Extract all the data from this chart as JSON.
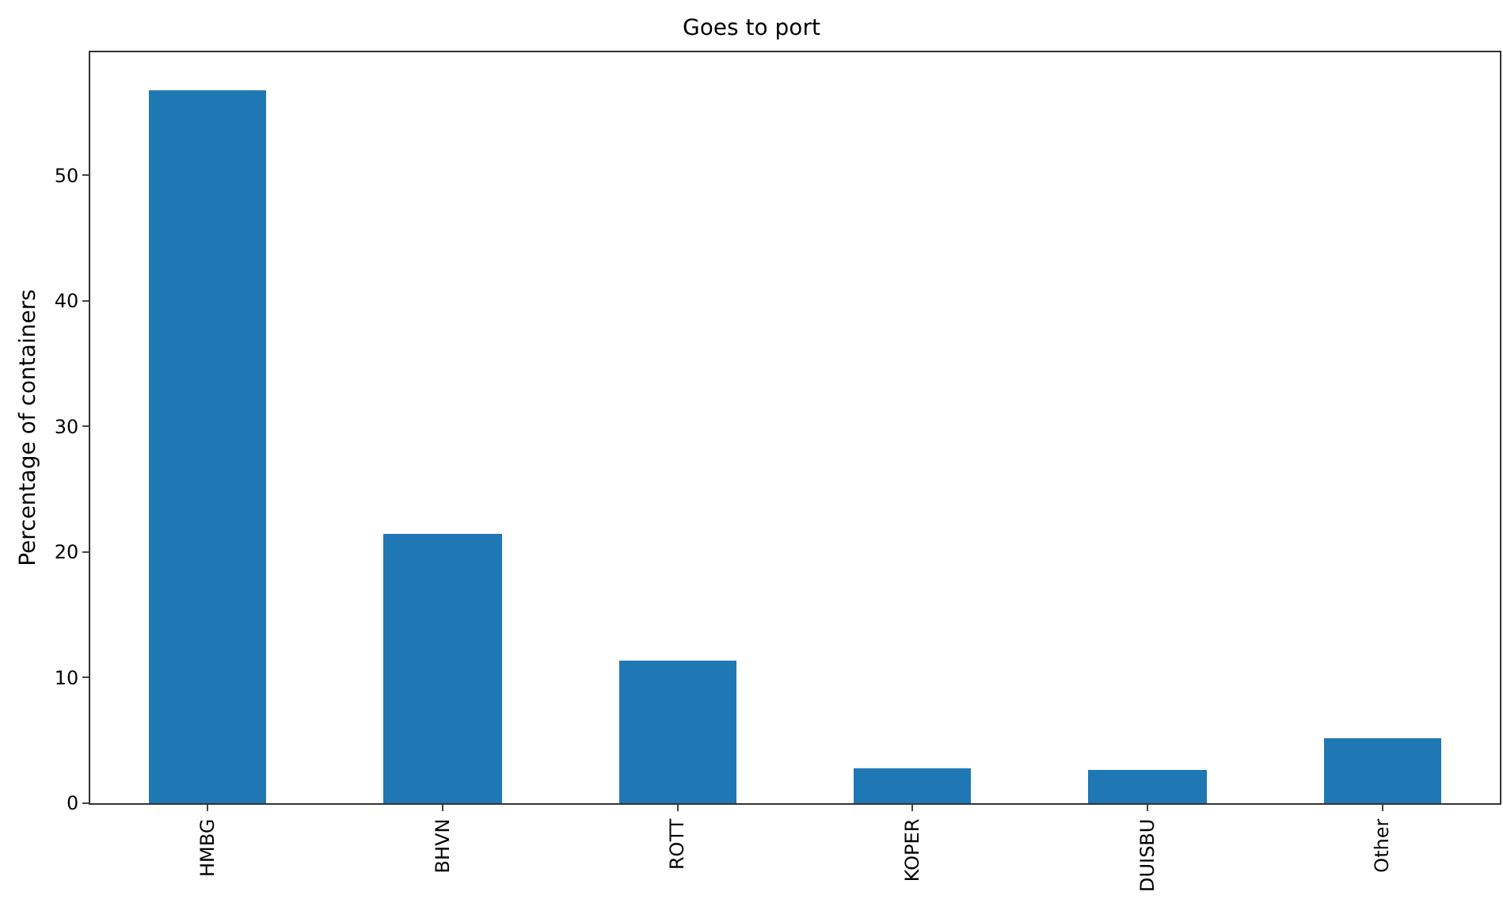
{
  "chart_data": {
    "type": "bar",
    "title": "Goes to port",
    "ylabel": "Percentage of containers",
    "categories": [
      "HMBG",
      "BHVN",
      "ROTT",
      "KOPER",
      "DUISBU",
      "Other"
    ],
    "values": [
      56.8,
      21.5,
      11.3,
      2.8,
      2.6,
      5.2
    ],
    "color": "#1f77b4",
    "ylim": [
      0,
      59.8
    ],
    "yticks": [
      0,
      10,
      20,
      30,
      40,
      50
    ]
  }
}
